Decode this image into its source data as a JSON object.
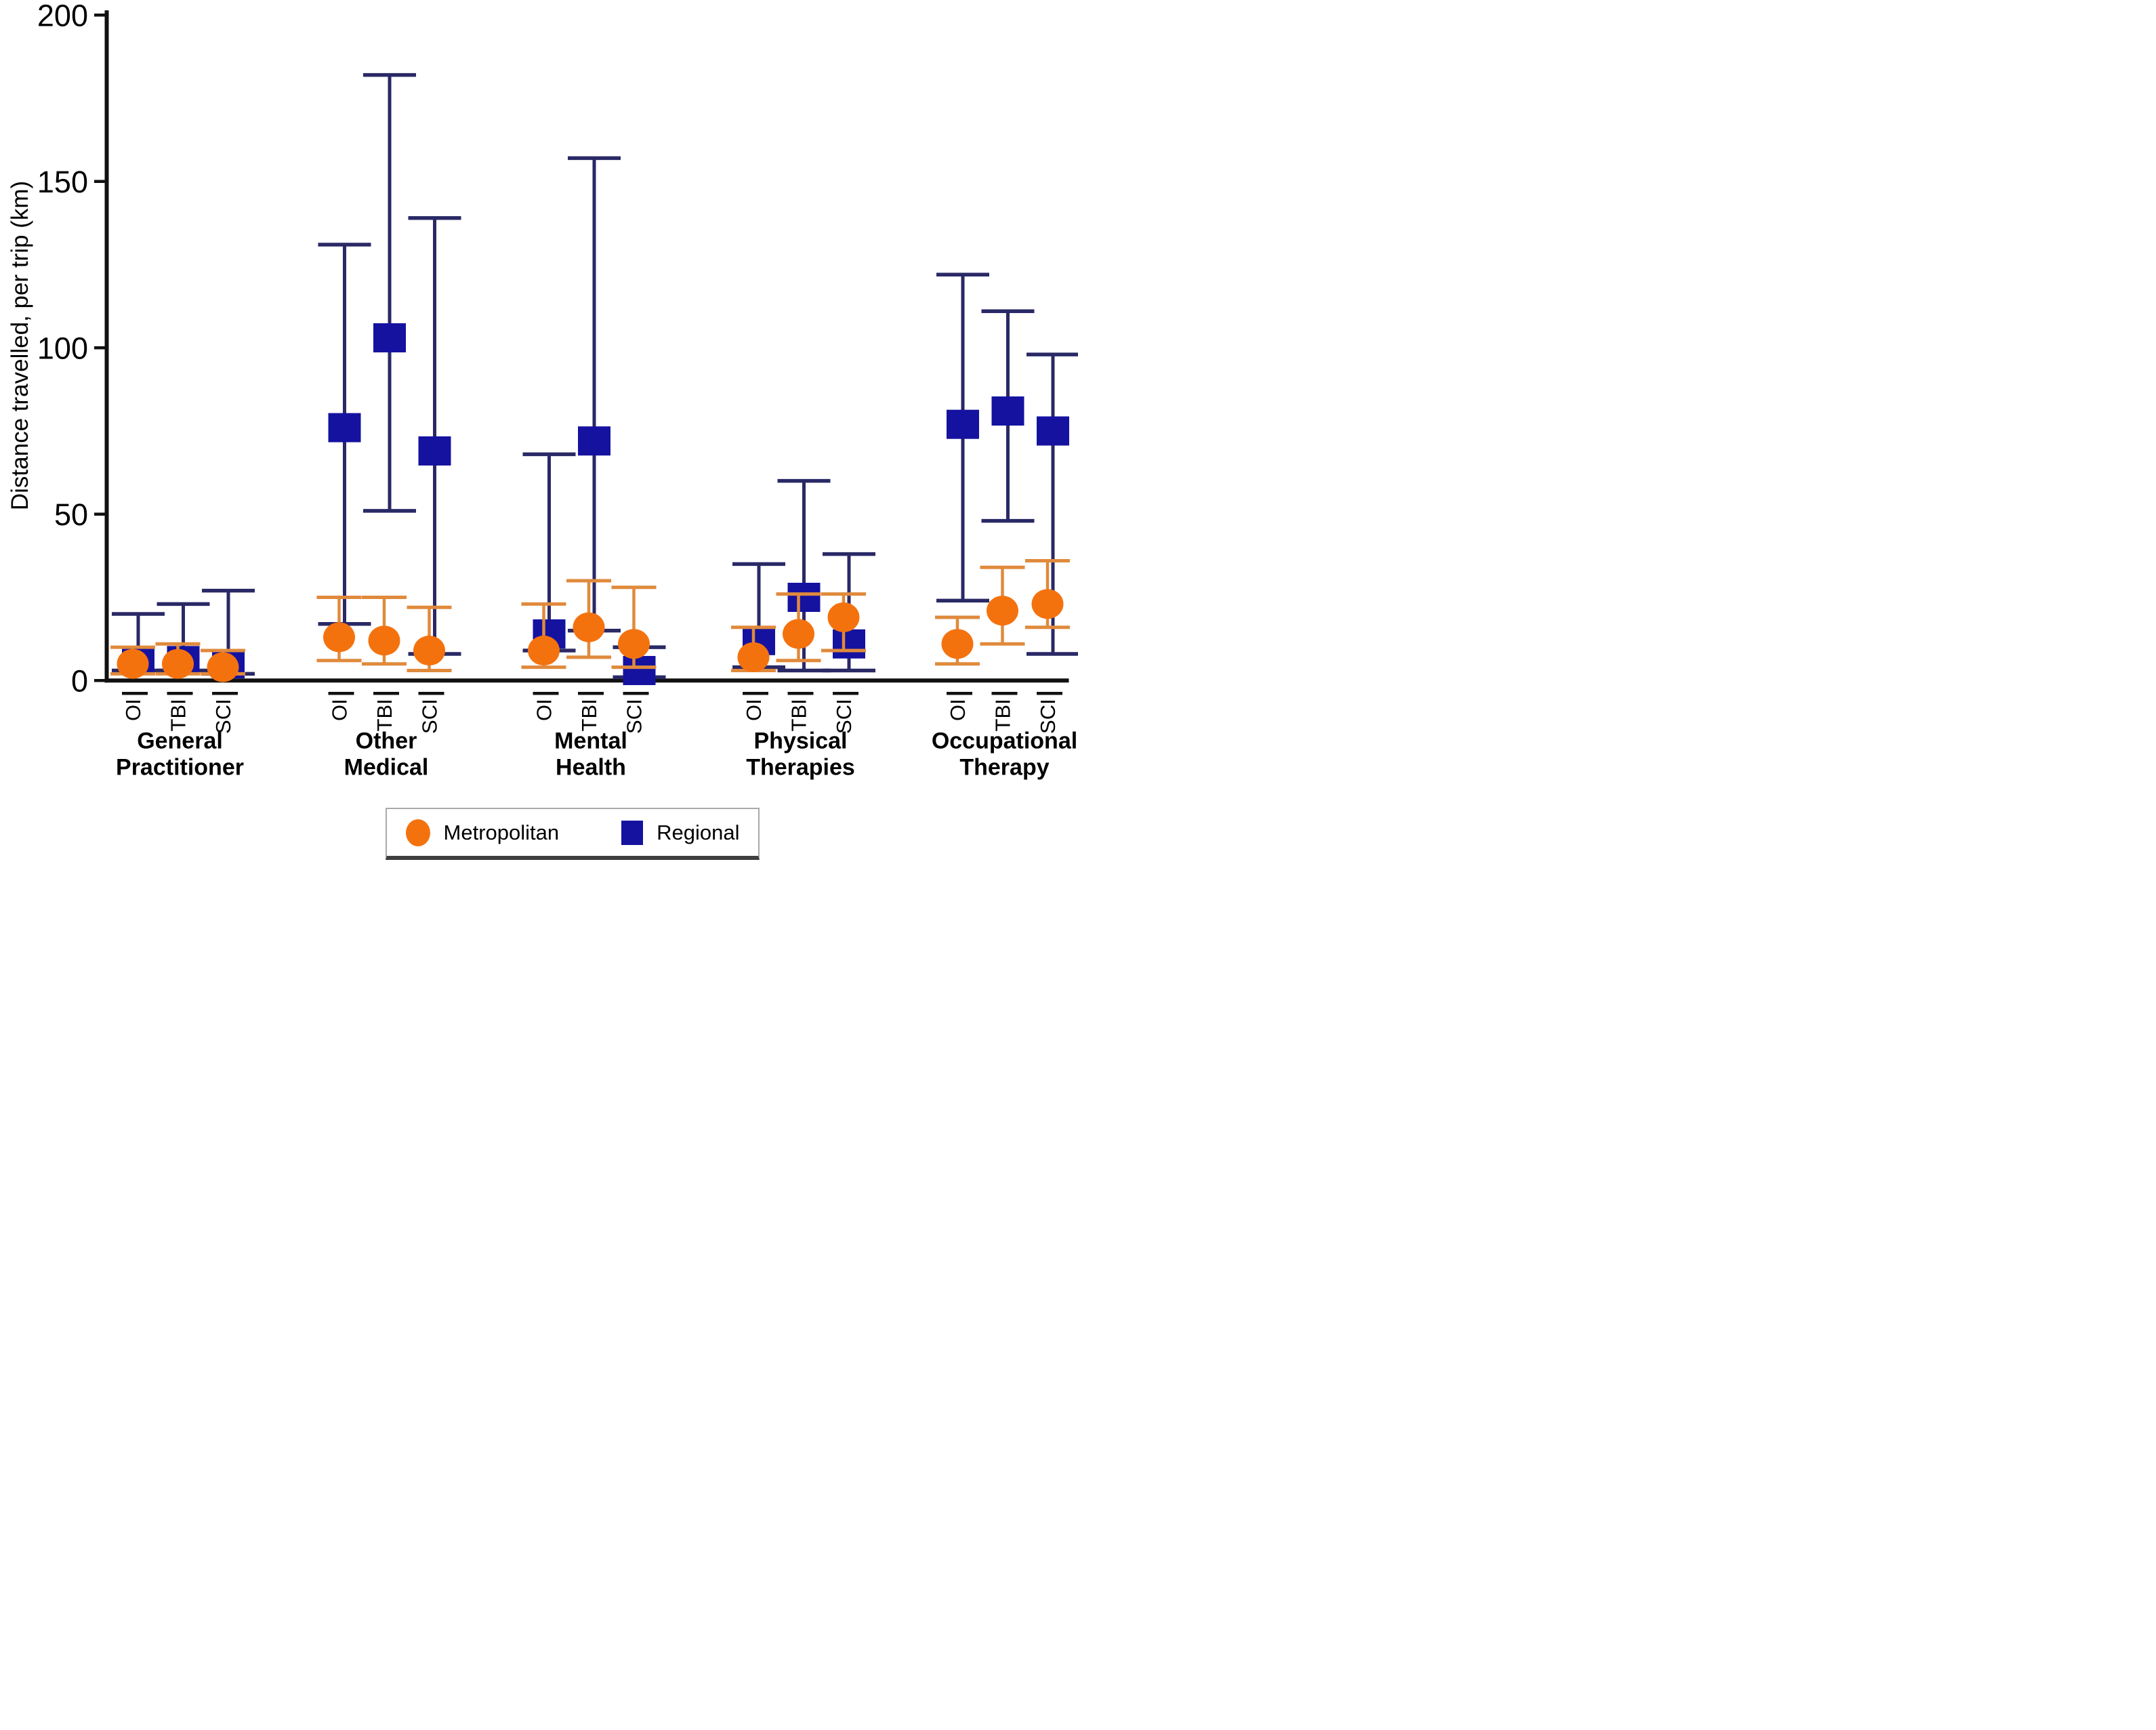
{
  "chart_data": {
    "type": "scatter",
    "title": "",
    "ylabel": "Distance travelled, per trip (km)",
    "xlabel": "",
    "ylim": [
      0,
      200
    ],
    "yticks": [
      0,
      50,
      100,
      150,
      200
    ],
    "grid": false,
    "legend": {
      "position": "bottom",
      "items": [
        {
          "label": "Metropolitan",
          "marker": "circle"
        },
        {
          "label": "Regional",
          "marker": "square"
        }
      ]
    },
    "colors": {
      "metropolitan": "#F4720E",
      "metropolitan_bar": "#E08A3C",
      "regional": "#1512A0",
      "regional_bar": "#2A2966",
      "axis": "#111111"
    },
    "subcategories": [
      "OI",
      "TBI",
      "SCI"
    ],
    "groups": [
      {
        "label": "General Practitioner",
        "label_lines": [
          "General",
          "Practitioner"
        ],
        "points": [
          {
            "category": "OI",
            "metropolitan": {
              "mean": 5,
              "lower": 2,
              "upper": 10
            },
            "regional": {
              "mean": 6,
              "lower": 3,
              "upper": 20
            }
          },
          {
            "category": "TBI",
            "metropolitan": {
              "mean": 5,
              "lower": 2,
              "upper": 11
            },
            "regional": {
              "mean": 6,
              "lower": 3,
              "upper": 23
            }
          },
          {
            "category": "SCI",
            "metropolitan": {
              "mean": 4,
              "lower": 2,
              "upper": 9
            },
            "regional": {
              "mean": 5,
              "lower": 2,
              "upper": 27
            }
          }
        ]
      },
      {
        "label": "Other Medical",
        "label_lines": [
          "Other",
          "Medical"
        ],
        "points": [
          {
            "category": "OI",
            "metropolitan": {
              "mean": 13,
              "lower": 6,
              "upper": 25
            },
            "regional": {
              "mean": 76,
              "lower": 17,
              "upper": 131
            }
          },
          {
            "category": "TBI",
            "metropolitan": {
              "mean": 12,
              "lower": 5,
              "upper": 25
            },
            "regional": {
              "mean": 103,
              "lower": 51,
              "upper": 182
            }
          },
          {
            "category": "SCI",
            "metropolitan": {
              "mean": 9,
              "lower": 3,
              "upper": 22
            },
            "regional": {
              "mean": 69,
              "lower": 8,
              "upper": 139
            }
          }
        ]
      },
      {
        "label": "Mental Health",
        "label_lines": [
          "Mental",
          "Health"
        ],
        "points": [
          {
            "category": "OI",
            "metropolitan": {
              "mean": 9,
              "lower": 4,
              "upper": 23
            },
            "regional": {
              "mean": 14,
              "lower": 9,
              "upper": 68
            }
          },
          {
            "category": "TBI",
            "metropolitan": {
              "mean": 16,
              "lower": 7,
              "upper": 30
            },
            "regional": {
              "mean": 72,
              "lower": 15,
              "upper": 157
            }
          },
          {
            "category": "SCI",
            "metropolitan": {
              "mean": 11,
              "lower": 4,
              "upper": 28
            },
            "regional": {
              "mean": 3,
              "lower": 1,
              "upper": 10
            }
          }
        ]
      },
      {
        "label": "Physical Therapies",
        "label_lines": [
          "Physical",
          "Therapies"
        ],
        "points": [
          {
            "category": "OI",
            "metropolitan": {
              "mean": 7,
              "lower": 3,
              "upper": 16
            },
            "regional": {
              "mean": 12,
              "lower": 4,
              "upper": 35
            }
          },
          {
            "category": "TBI",
            "metropolitan": {
              "mean": 14,
              "lower": 6,
              "upper": 26
            },
            "regional": {
              "mean": 25,
              "lower": 3,
              "upper": 60
            }
          },
          {
            "category": "SCI",
            "metropolitan": {
              "mean": 19,
              "lower": 9,
              "upper": 26
            },
            "regional": {
              "mean": 11,
              "lower": 3,
              "upper": 38
            }
          }
        ]
      },
      {
        "label": "Occupational Therapy",
        "label_lines": [
          "Occupational",
          "Therapy"
        ],
        "points": [
          {
            "category": "OI",
            "metropolitan": {
              "mean": 11,
              "lower": 5,
              "upper": 19
            },
            "regional": {
              "mean": 77,
              "lower": 24,
              "upper": 122
            }
          },
          {
            "category": "TBI",
            "metropolitan": {
              "mean": 21,
              "lower": 11,
              "upper": 34
            },
            "regional": {
              "mean": 81,
              "lower": 48,
              "upper": 111
            }
          },
          {
            "category": "SCI",
            "metropolitan": {
              "mean": 23,
              "lower": 16,
              "upper": 36
            },
            "regional": {
              "mean": 75,
              "lower": 8,
              "upper": 98
            }
          }
        ]
      }
    ]
  }
}
